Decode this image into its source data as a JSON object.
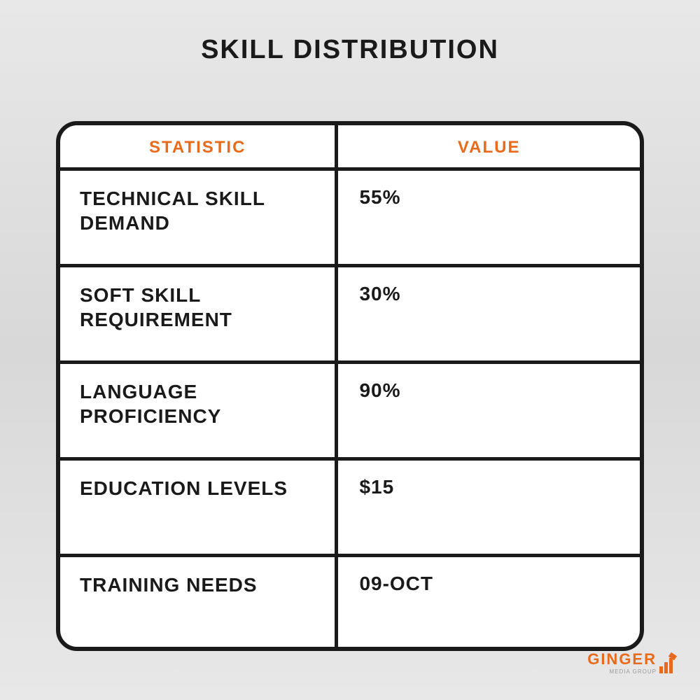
{
  "title": "SKILL DISTRIBUTION",
  "table": {
    "type": "table",
    "header_color": "#e86b1c",
    "border_color": "#1a1a1a",
    "background_color": "#ffffff",
    "border_width": 6,
    "border_radius": 30,
    "columns": [
      {
        "label": "STATISTIC",
        "width_pct": 48,
        "align": "left"
      },
      {
        "label": "VALUE",
        "width_pct": 52,
        "align": "left"
      }
    ],
    "rows": [
      {
        "statistic": "TECHNICAL SKILL DEMAND",
        "value": "55%"
      },
      {
        "statistic": "SOFT SKILL REQUIREMENT",
        "value": "30%"
      },
      {
        "statistic": "LANGUAGE PROFICIENCY",
        "value": "90%"
      },
      {
        "statistic": "EDUCATION LEVELS",
        "value": "$15"
      },
      {
        "statistic": "TRAINING NEEDS",
        "value": "09-OCT"
      }
    ],
    "font": {
      "header_size_pt": 18,
      "cell_size_pt": 21,
      "weight": 900,
      "family": "Arial Black"
    }
  },
  "page": {
    "background_gradient": [
      "#e8e8e8",
      "#d8d8d8",
      "#e8e8e8"
    ],
    "title_color": "#1a1a1a",
    "title_fontsize_pt": 28
  },
  "logo": {
    "text": "GINGER",
    "subtext": "MEDIA GROUP",
    "color": "#e86b1c"
  }
}
